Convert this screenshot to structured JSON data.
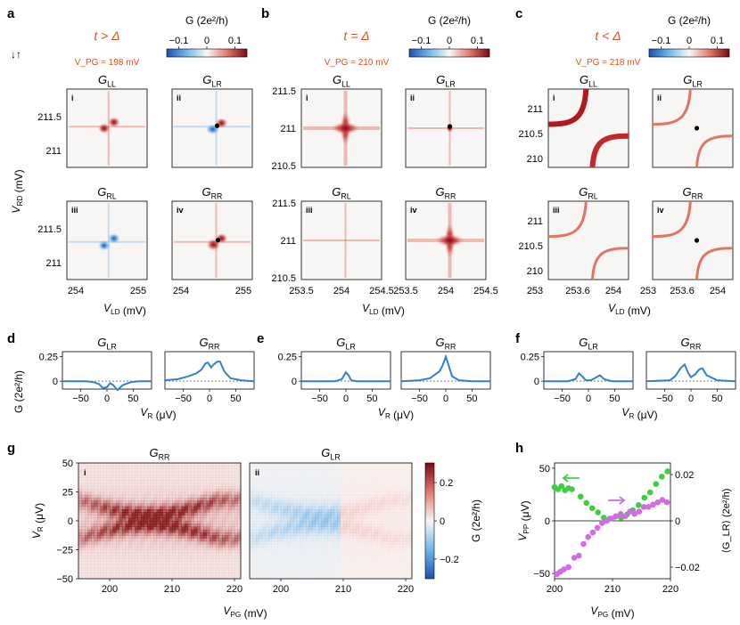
{
  "panels": {
    "a": "a",
    "b": "b",
    "c": "c",
    "d": "d",
    "e": "e",
    "f": "f",
    "g": "g",
    "h": "h"
  },
  "spin_symbol": "↓↑",
  "conditions": [
    {
      "title": "t > Δ",
      "vpg": "V_PG = 198 mV"
    },
    {
      "title": "t = Δ",
      "vpg": "V_PG = 210 mV"
    },
    {
      "title": "t < Δ",
      "vpg": "V_PG = 218 mV"
    }
  ],
  "colorbar": {
    "label": "G (2e²/h)",
    "ticks": [
      "−0.1",
      "0",
      "0.1"
    ],
    "ticks_g": [
      "0.2",
      "0",
      "−0.2"
    ]
  },
  "maps": {
    "titles": [
      "G_LL",
      "G_LR",
      "G_RL",
      "G_RR"
    ],
    "roman": [
      "i",
      "ii",
      "iii",
      "iv"
    ],
    "a": {
      "xticks": [
        "254",
        "255"
      ],
      "yticks": [
        "211.5",
        "211"
      ]
    },
    "b": {
      "xticks": [
        "253.5",
        "254",
        "254.5"
      ],
      "yticks": [
        "211.5",
        "211",
        "210.5"
      ]
    },
    "c": {
      "xticks": [
        "253.6",
        "254"
      ],
      "yticks": [
        "211",
        "210.5",
        "210"
      ]
    },
    "ylabel": "V_RD (mV)",
    "xlabel": "V_LD (mV)"
  },
  "chart_data": [
    {
      "type": "line",
      "panel": "d",
      "subplots": [
        "G_LR",
        "G_RR"
      ],
      "xlabel": "V_R (μV)",
      "ylabel": "G (2e²/h)",
      "xticks": [
        "−50",
        "0",
        "50"
      ],
      "yticks": [
        "0.25",
        "0"
      ],
      "xlim": [
        -85,
        85
      ],
      "ylim": [
        -0.08,
        0.3
      ],
      "series": [
        {
          "name": "G_LR",
          "x": [
            -85,
            -60,
            -40,
            -25,
            -15,
            -8,
            0,
            6,
            12,
            20,
            30,
            45,
            60,
            85
          ],
          "y": [
            0,
            0,
            0,
            -0.01,
            -0.03,
            -0.07,
            -0.06,
            -0.02,
            -0.04,
            -0.09,
            -0.04,
            -0.01,
            0,
            0
          ]
        },
        {
          "name": "G_RR",
          "x": [
            -85,
            -60,
            -40,
            -25,
            -15,
            -8,
            -3,
            3,
            8,
            15,
            20,
            28,
            40,
            60,
            85
          ],
          "y": [
            0.01,
            0.02,
            0.05,
            0.08,
            0.12,
            0.18,
            0.19,
            0.14,
            0.17,
            0.2,
            0.2,
            0.1,
            0.03,
            0.01,
            0
          ]
        }
      ]
    },
    {
      "type": "line",
      "panel": "e",
      "subplots": [
        "G_LR",
        "G_RR"
      ],
      "xlabel": "V_R (μV)",
      "xticks": [
        "−50",
        "0",
        "50"
      ],
      "yticks": [
        "0.25",
        "0"
      ],
      "xlim": [
        -85,
        85
      ],
      "ylim": [
        -0.08,
        0.3
      ],
      "series": [
        {
          "name": "G_LR",
          "x": [
            -85,
            -50,
            -20,
            -8,
            0,
            5,
            10,
            20,
            40,
            85
          ],
          "y": [
            0,
            0,
            0,
            0.02,
            0.09,
            0.06,
            0.01,
            0,
            0,
            0
          ]
        },
        {
          "name": "G_RR",
          "x": [
            -85,
            -50,
            -30,
            -20,
            -12,
            -6,
            0,
            6,
            12,
            25,
            50,
            85
          ],
          "y": [
            0,
            0.01,
            0.03,
            0.07,
            0.1,
            0.16,
            0.25,
            0.15,
            0.05,
            0.01,
            0,
            0
          ]
        }
      ]
    },
    {
      "type": "line",
      "panel": "f",
      "subplots": [
        "G_LR",
        "G_RR"
      ],
      "xlabel": "V_R (μV)",
      "xticks": [
        "−50",
        "0",
        "50"
      ],
      "yticks": [
        "0.25",
        "0"
      ],
      "xlim": [
        -85,
        85
      ],
      "ylim": [
        -0.08,
        0.3
      ],
      "series": [
        {
          "name": "G_LR",
          "x": [
            -85,
            -40,
            -25,
            -18,
            -12,
            -5,
            5,
            15,
            22,
            30,
            45,
            85
          ],
          "y": [
            0,
            0,
            0.02,
            0.08,
            0.05,
            0.01,
            0.01,
            0.04,
            0.06,
            0.02,
            0,
            0
          ]
        },
        {
          "name": "G_RR",
          "x": [
            -85,
            -40,
            -30,
            -20,
            -12,
            -5,
            0,
            8,
            16,
            22,
            30,
            50,
            85
          ],
          "y": [
            0,
            0.01,
            0.05,
            0.13,
            0.17,
            0.08,
            0.04,
            0.07,
            0.12,
            0.13,
            0.06,
            0.01,
            0
          ]
        }
      ]
    },
    {
      "type": "heatmap",
      "panel": "g",
      "subplots": [
        "G_RR",
        "G_LR"
      ],
      "roman": [
        "i",
        "ii"
      ],
      "xlabel": "V_PG (mV)",
      "ylabel": "V_R (μV)",
      "xticks": [
        "200",
        "210",
        "220"
      ],
      "yticks": [
        "50",
        "25",
        "0",
        "−25",
        "−50"
      ],
      "xlim": [
        195,
        221
      ],
      "ylim": [
        -50,
        50
      ],
      "zlim": [
        -0.3,
        0.3
      ],
      "colorbar_label": "G (2e²/h)"
    },
    {
      "type": "scatter",
      "panel": "h",
      "xlabel": "V_PG (mV)",
      "ylabel_left": "V_PP (μV)",
      "ylabel_right": "⟨G_LR⟩ (2e²/h)",
      "xticks": [
        "200",
        "210",
        "220"
      ],
      "yticks_left": [
        "50",
        "0",
        "−50"
      ],
      "yticks_right": [
        "0.02",
        "0",
        "−0.02"
      ],
      "xlim": [
        200,
        220
      ],
      "ylim_left": [
        -55,
        55
      ],
      "ylim_right": [
        -0.025,
        0.025
      ],
      "series": [
        {
          "name": "V_PP",
          "color": "#3ecf3e",
          "x": [
            200,
            200.6,
            201.2,
            201.8,
            202.4,
            203,
            204.5,
            205.5,
            206.5,
            207.5,
            208.5,
            209.5,
            210.5,
            211.5,
            212.5,
            213.5,
            214.5,
            215.5,
            216.5,
            217.5,
            218.5,
            219.5
          ],
          "y": [
            32,
            30,
            33,
            29,
            31,
            30,
            23,
            17,
            12,
            8,
            3,
            2,
            4,
            3,
            6,
            10,
            15,
            22,
            27,
            35,
            42,
            47
          ]
        },
        {
          "name": "G_LR_avg",
          "color": "#d36ae8",
          "x": [
            200.4,
            201,
            201.6,
            202.4,
            203.4,
            204.2,
            205,
            205.8,
            206.6,
            207.4,
            208.2,
            209,
            209.8,
            210.6,
            211.4,
            212.2,
            213,
            213.8,
            214.6,
            215.4,
            216.2,
            217,
            217.8,
            218.6,
            219.4
          ],
          "y": [
            -0.023,
            -0.022,
            -0.021,
            -0.02,
            -0.016,
            -0.015,
            -0.01,
            -0.007,
            -0.005,
            -0.003,
            -0.001,
            0.0,
            0.001,
            0.002,
            0.003,
            0.002,
            0.004,
            0.003,
            0.004,
            0.006,
            0.006,
            0.007,
            0.008,
            0.009,
            0.008
          ]
        }
      ]
    }
  ]
}
